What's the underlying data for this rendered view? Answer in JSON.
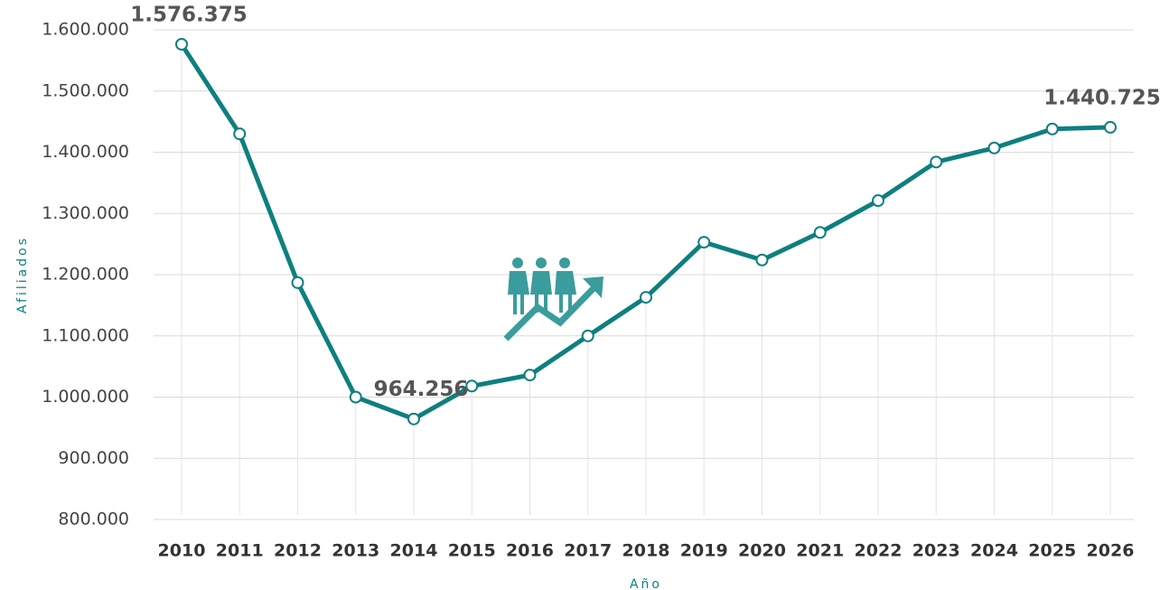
{
  "chart_data": {
    "type": "line",
    "y_label": "Afiliados",
    "x_label": "Año",
    "categories": [
      "2010",
      "2011",
      "2012",
      "2013",
      "2014",
      "2015",
      "2016",
      "2017",
      "2018",
      "2019",
      "2020",
      "2021",
      "2022",
      "2023",
      "2024",
      "2025",
      "2026"
    ],
    "series": [
      {
        "name": "Afiliados",
        "color": "#0e7f7f",
        "values": [
          1576375,
          1430000,
          1187000,
          1000000,
          964256,
          1018000,
          1036000,
          1100000,
          1163000,
          1253000,
          1224000,
          1269000,
          1321000,
          1384000,
          1407000,
          1438000,
          1440725
        ],
        "value_labels": [
          "1.576.375",
          null,
          null,
          null,
          "964.256",
          null,
          null,
          null,
          null,
          null,
          null,
          null,
          null,
          null,
          null,
          null,
          "1.440.725"
        ]
      }
    ],
    "ylim": [
      800000,
      1600000
    ],
    "yticks": [
      {
        "value": 800000,
        "label": "800.000"
      },
      {
        "value": 900000,
        "label": "900.000"
      },
      {
        "value": 1000000,
        "label": "1.000.000"
      },
      {
        "value": 1100000,
        "label": "1.100.000"
      },
      {
        "value": 1200000,
        "label": "1.200.000"
      },
      {
        "value": 1300000,
        "label": "1.300.000"
      },
      {
        "value": 1400000,
        "label": "1.400.000"
      },
      {
        "value": 1500000,
        "label": "1.500.000"
      },
      {
        "value": 1600000,
        "label": "1.600.000"
      }
    ],
    "grid": true
  }
}
